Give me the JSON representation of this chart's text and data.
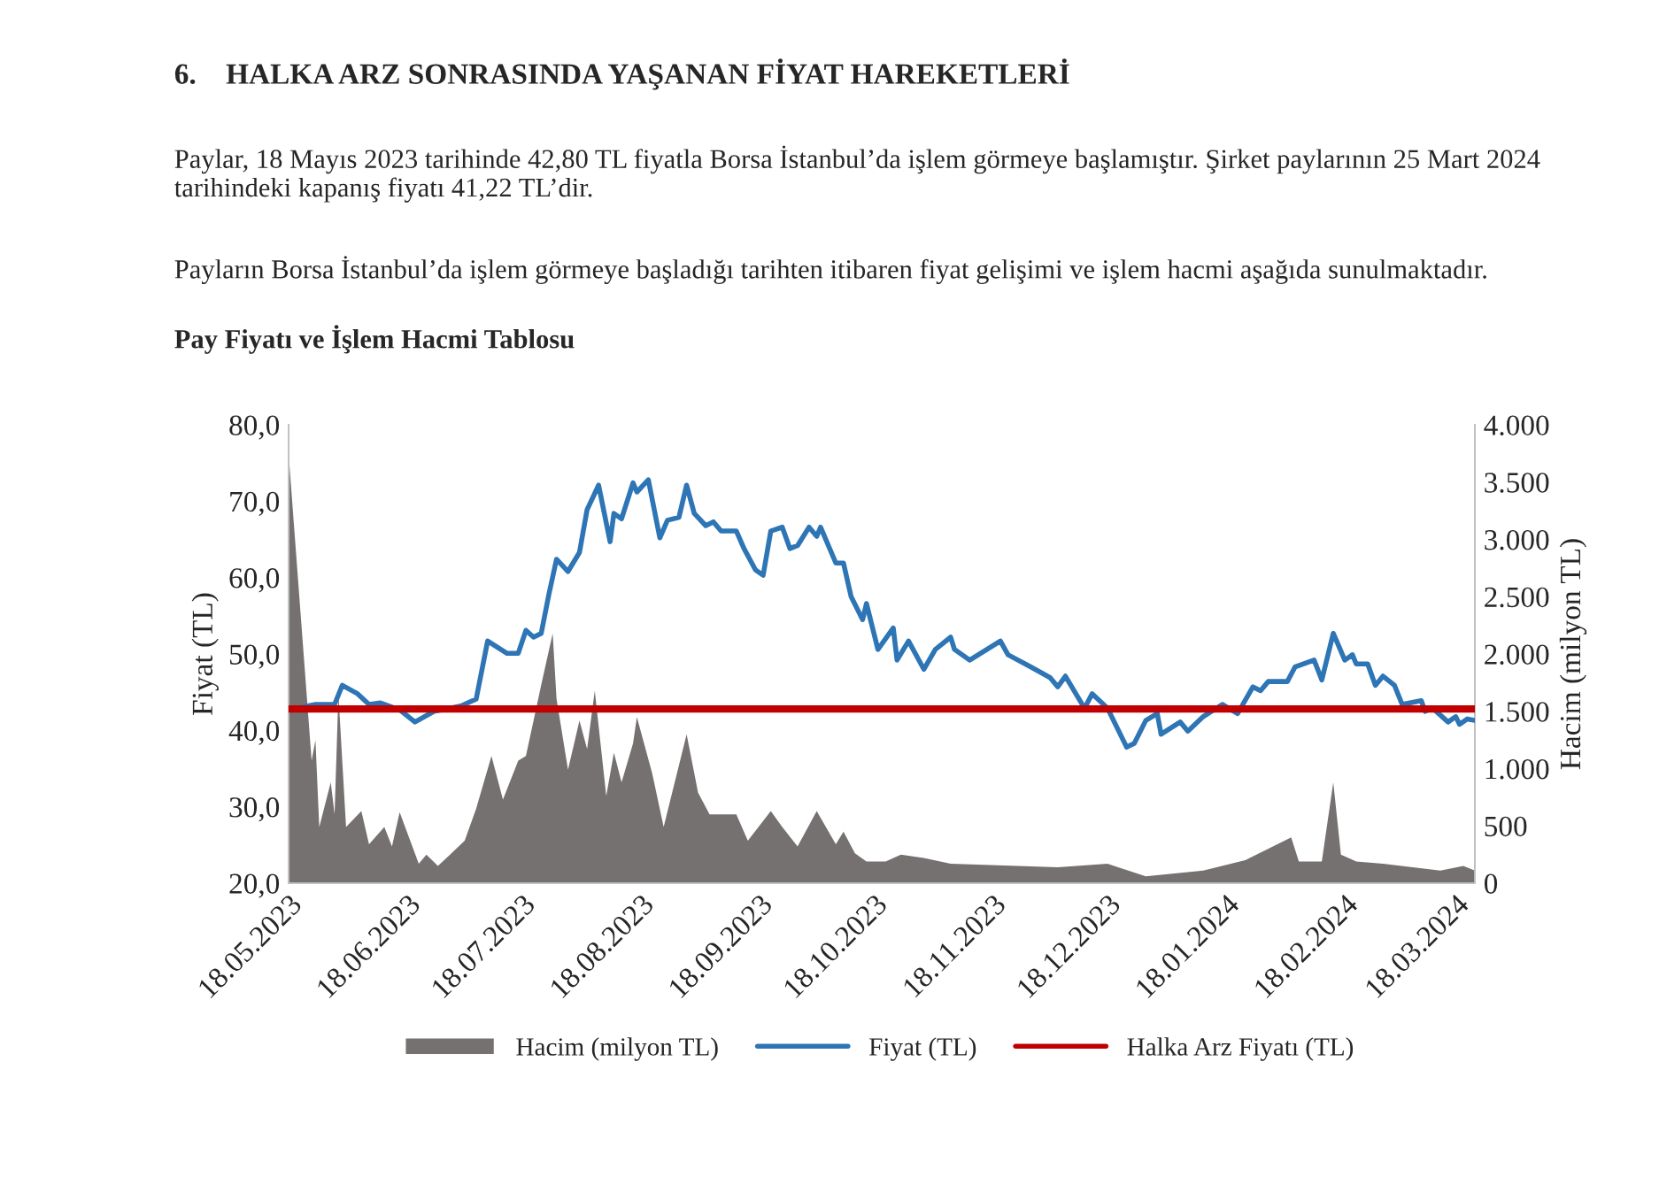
{
  "chart_data": {
    "type": "line",
    "title": "Pay Fiyatı ve İşlem Hacmi Tablosu",
    "annotations": [
      "6.    HALKA ARZ SONRASINDA YAŞANAN FİYAT HAREKETLERİ",
      "Paylar, 18 Mayıs 2023 tarihinde 42,80 TL fiyatla Borsa İstanbul’da işlem görmeye başlamıştır. Şirket paylarının 25 Mart 2024 tarihindeki kapanış fiyatı 41,22 TL’dir.",
      "Payların Borsa İstanbul’da işlem görmeye başladığı tarihten itibaren fiyat gelişimi ve işlem hacmi aşağıda sunulmaktadır."
    ],
    "ylabel": "Fiyat (TL)",
    "y2label": "Hacim (milyon TL)",
    "series": [
      {
        "name": "Hacim (milyon TL)",
        "type": "area",
        "axis": "y2",
        "color": "#767171",
        "x": [
          "2023-05-18",
          "2023-05-24",
          "2023-05-25",
          "2023-05-26",
          "2023-05-29",
          "2023-05-30",
          "2023-05-31",
          "2023-06-02",
          "2023-06-06",
          "2023-06-08",
          "2023-06-12",
          "2023-06-14",
          "2023-06-16",
          "2023-06-21",
          "2023-06-23",
          "2023-06-26",
          "2023-07-03",
          "2023-07-06",
          "2023-07-10",
          "2023-07-13",
          "2023-07-17",
          "2023-07-19",
          "2023-07-21",
          "2023-07-23",
          "2023-07-26",
          "2023-07-27",
          "2023-07-30",
          "2023-08-02",
          "2023-08-04",
          "2023-08-06",
          "2023-08-09",
          "2023-08-11",
          "2023-08-13",
          "2023-08-16",
          "2023-08-17",
          "2023-08-21",
          "2023-08-24",
          "2023-08-30",
          "2023-09-02",
          "2023-09-05",
          "2023-09-12",
          "2023-09-15",
          "2023-09-21",
          "2023-09-24",
          "2023-09-28",
          "2023-10-03",
          "2023-10-08",
          "2023-10-10",
          "2023-10-13",
          "2023-10-16",
          "2023-10-21",
          "2023-10-25",
          "2023-10-31",
          "2023-11-07",
          "2023-12-05",
          "2023-12-18",
          "2023-12-28",
          "2024-01-12",
          "2024-01-23",
          "2024-02-04",
          "2024-02-06",
          "2024-02-12",
          "2024-02-15",
          "2024-02-17",
          "2024-02-21",
          "2024-02-28",
          "2024-03-14",
          "2024-03-20",
          "2024-03-23"
        ],
        "values": [
          3740,
          1070,
          1250,
          490,
          880,
          600,
          1650,
          490,
          630,
          340,
          490,
          320,
          620,
          170,
          250,
          150,
          370,
          650,
          1110,
          730,
          1070,
          1110,
          1420,
          1730,
          2180,
          1610,
          990,
          1420,
          1170,
          1680,
          760,
          1140,
          880,
          1220,
          1450,
          960,
          490,
          1300,
          790,
          600,
          600,
          370,
          630,
          490,
          320,
          630,
          340,
          450,
          260,
          190,
          190,
          250,
          220,
          170,
          140,
          170,
          60,
          110,
          200,
          400,
          190,
          190,
          880,
          250,
          190,
          170,
          110,
          150,
          110
        ]
      },
      {
        "name": "Fiyat (TL)",
        "color": "#2e75b6",
        "x": [
          "2023-05-18",
          "2023-05-25",
          "2023-05-30",
          "2023-06-01",
          "2023-06-05",
          "2023-06-08",
          "2023-06-11",
          "2023-06-16",
          "2023-06-20",
          "2023-06-25",
          "2023-07-02",
          "2023-07-06",
          "2023-07-09",
          "2023-07-14",
          "2023-07-17",
          "2023-07-19",
          "2023-07-21",
          "2023-07-23",
          "2023-07-25",
          "2023-07-27",
          "2023-07-30",
          "2023-08-02",
          "2023-08-04",
          "2023-08-07",
          "2023-08-10",
          "2023-08-11",
          "2023-08-13",
          "2023-08-16",
          "2023-08-17",
          "2023-08-20",
          "2023-08-23",
          "2023-08-25",
          "2023-08-28",
          "2023-08-30",
          "2023-09-01",
          "2023-09-04",
          "2023-09-06",
          "2023-09-08",
          "2023-09-12",
          "2023-09-14",
          "2023-09-17",
          "2023-09-19",
          "2023-09-21",
          "2023-09-24",
          "2023-09-26",
          "2023-09-28",
          "2023-10-01",
          "2023-10-03",
          "2023-10-04",
          "2023-10-08",
          "2023-10-10",
          "2023-10-12",
          "2023-10-15",
          "2023-10-16",
          "2023-10-19",
          "2023-10-23",
          "2023-10-24",
          "2023-10-27",
          "2023-10-31",
          "2023-11-03",
          "2023-11-07",
          "2023-11-08",
          "2023-11-12",
          "2023-11-20",
          "2023-11-22",
          "2023-11-28",
          "2023-12-03",
          "2023-12-05",
          "2023-12-07",
          "2023-12-12",
          "2023-12-14",
          "2023-12-18",
          "2023-12-23",
          "2023-12-25",
          "2023-12-28",
          "2023-12-31",
          "2024-01-01",
          "2024-01-06",
          "2024-01-08",
          "2024-01-12",
          "2024-01-17",
          "2024-01-21",
          "2024-01-25",
          "2024-01-27",
          "2024-01-29",
          "2024-02-03",
          "2024-02-05",
          "2024-02-10",
          "2024-02-12",
          "2024-02-15",
          "2024-02-18",
          "2024-02-20",
          "2024-02-21",
          "2024-02-24",
          "2024-02-26",
          "2024-02-28",
          "2024-03-02",
          "2024-03-04",
          "2024-03-09",
          "2024-03-10",
          "2024-03-12",
          "2024-03-16",
          "2024-03-18",
          "2024-03-19",
          "2024-03-21",
          "2024-03-23"
        ],
        "values": [
          42.7,
          43.4,
          43.4,
          45.9,
          44.8,
          43.4,
          43.6,
          42.7,
          41.1,
          42.5,
          43.2,
          44.1,
          51.7,
          50.1,
          50.1,
          53.1,
          52.2,
          52.7,
          57.8,
          62.4,
          60.8,
          63.3,
          68.9,
          72.1,
          64.7,
          68.4,
          67.7,
          72.4,
          71.2,
          72.8,
          65.2,
          67.5,
          67.9,
          72.1,
          68.4,
          66.8,
          67.3,
          66.1,
          66.1,
          63.8,
          61.0,
          60.3,
          66.1,
          66.6,
          63.8,
          64.2,
          66.6,
          65.4,
          66.6,
          61.9,
          61.9,
          57.5,
          54.5,
          56.6,
          50.6,
          53.4,
          49.2,
          51.7,
          48.0,
          50.6,
          52.2,
          50.6,
          49.2,
          51.7,
          49.9,
          48.3,
          46.9,
          45.7,
          47.1,
          42.9,
          44.8,
          42.9,
          37.8,
          38.3,
          41.3,
          42.2,
          39.5,
          41.1,
          39.9,
          41.8,
          43.4,
          42.2,
          45.7,
          45.2,
          46.4,
          46.4,
          48.3,
          49.2,
          46.6,
          52.7,
          49.2,
          49.9,
          48.7,
          48.7,
          45.9,
          47.1,
          45.9,
          43.4,
          43.9,
          42.5,
          42.9,
          41.1,
          41.8,
          40.8,
          41.5,
          41.3
        ]
      }
    ],
    "ref_lines": [
      {
        "axis": "y",
        "value": 42.8,
        "label": "Halka Arz Fiyatı (TL)",
        "color": "#c00000",
        "line_style": "solid"
      }
    ],
    "xlim": [
      "2023-05-18",
      "2024-03-23"
    ],
    "xticks": [
      {
        "value": "2023-05-18",
        "label": "18.05.2023"
      },
      {
        "value": "2023-06-18",
        "label": "18.06.2023"
      },
      {
        "value": "2023-07-18",
        "label": "18.07.2023"
      },
      {
        "value": "2023-08-18",
        "label": "18.08.2023"
      },
      {
        "value": "2023-09-18",
        "label": "18.09.2023"
      },
      {
        "value": "2023-10-18",
        "label": "18.10.2023"
      },
      {
        "value": "2023-11-18",
        "label": "18.11.2023"
      },
      {
        "value": "2023-12-18",
        "label": "18.12.2023"
      },
      {
        "value": "2024-01-18",
        "label": "18.01.2024"
      },
      {
        "value": "2024-02-18",
        "label": "18.02.2024"
      },
      {
        "value": "2024-03-18",
        "label": "18.03.2024"
      }
    ],
    "ylim": [
      20,
      80
    ],
    "yticks": [
      {
        "value": 20,
        "label": "20,0"
      },
      {
        "value": 30,
        "label": "30,0"
      },
      {
        "value": 40,
        "label": "40,0"
      },
      {
        "value": 50,
        "label": "50,0"
      },
      {
        "value": 60,
        "label": "60,0"
      },
      {
        "value": 70,
        "label": "70,0"
      },
      {
        "value": 80,
        "label": "80,0"
      }
    ],
    "y2lim": [
      0,
      4000
    ],
    "y2ticks": [
      0,
      500,
      {
        "value": 1000,
        "label": "1.000"
      },
      {
        "value": 1500,
        "label": "1.500"
      },
      {
        "value": 2000,
        "label": "2.000"
      },
      {
        "value": 2500,
        "label": "2.500"
      },
      {
        "value": 3000,
        "label": "3.000"
      },
      {
        "value": 3500,
        "label": "3.500"
      },
      {
        "value": 4000,
        "label": "4.000"
      }
    ],
    "grid": false,
    "legend": "bottom",
    "marker": "none",
    "line_style": "solid"
  }
}
